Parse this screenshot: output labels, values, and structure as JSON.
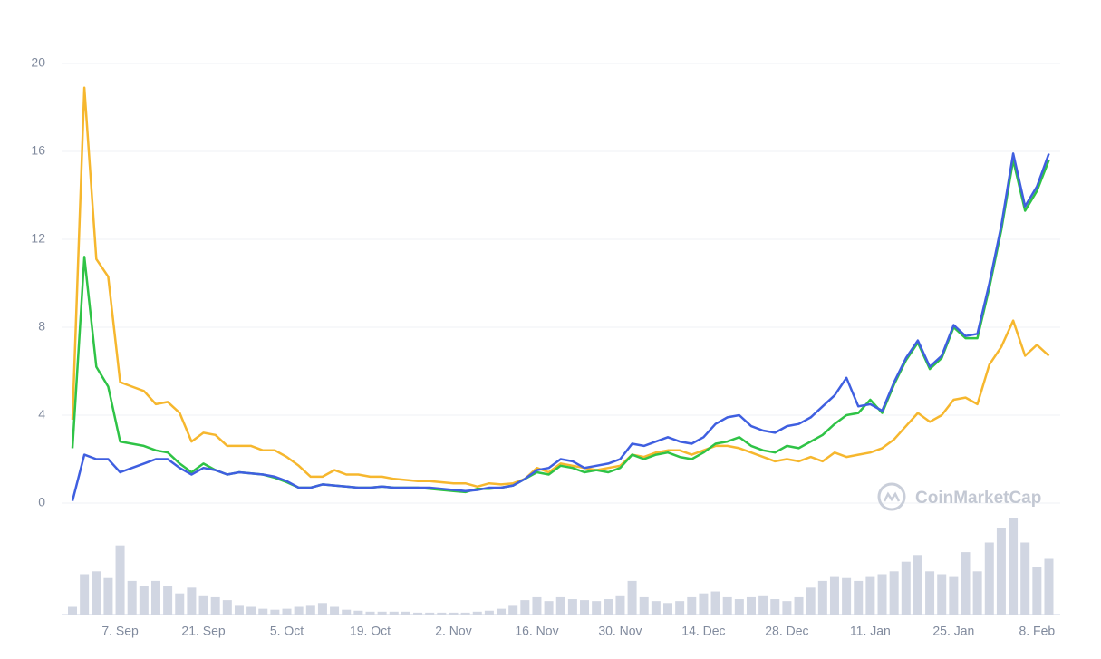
{
  "chart_data": {
    "type": "line",
    "watermark": "CoinMarketCap",
    "categories": [
      null,
      null,
      null,
      null,
      "7. Sep",
      null,
      null,
      null,
      null,
      null,
      null,
      "21. Sep",
      null,
      null,
      null,
      null,
      null,
      null,
      "5. Oct",
      null,
      null,
      null,
      null,
      null,
      null,
      "19. Oct",
      null,
      null,
      null,
      null,
      null,
      null,
      "2. Nov",
      null,
      null,
      null,
      null,
      null,
      null,
      "16. Nov",
      null,
      null,
      null,
      null,
      null,
      null,
      "30. Nov",
      null,
      null,
      null,
      null,
      null,
      null,
      "14. Dec",
      null,
      null,
      null,
      null,
      null,
      null,
      "28. Dec",
      null,
      null,
      null,
      null,
      null,
      null,
      "11. Jan",
      null,
      null,
      null,
      null,
      null,
      null,
      "25. Jan",
      null,
      null,
      null,
      null,
      null,
      null,
      "8. Feb",
      null
    ],
    "ylim": [
      0,
      20
    ],
    "yticks": [
      0,
      4,
      8,
      12,
      16,
      20
    ],
    "grid": true,
    "series": [
      {
        "color": "#f6b72e",
        "values": [
          3.8,
          18.9,
          11.1,
          10.3,
          5.5,
          5.3,
          5.1,
          4.5,
          4.6,
          4.1,
          2.8,
          3.2,
          3.1,
          2.6,
          2.6,
          2.6,
          2.4,
          2.4,
          2.1,
          1.7,
          1.2,
          1.2,
          1.5,
          1.3,
          1.3,
          1.2,
          1.2,
          1.1,
          1.05,
          1.0,
          1.0,
          0.95,
          0.9,
          0.9,
          0.75,
          0.9,
          0.85,
          0.9,
          1.1,
          1.6,
          1.4,
          1.8,
          1.7,
          1.6,
          1.5,
          1.6,
          1.7,
          2.2,
          2.1,
          2.3,
          2.4,
          2.4,
          2.2,
          2.4,
          2.6,
          2.6,
          2.5,
          2.3,
          2.1,
          1.9,
          2.0,
          1.9,
          2.1,
          1.9,
          2.3,
          2.1,
          2.2,
          2.3,
          2.5,
          2.9,
          3.5,
          4.1,
          3.7,
          4.0,
          4.7,
          4.8,
          4.5,
          6.3,
          7.1,
          8.3,
          6.7,
          7.2,
          6.7
        ]
      },
      {
        "color": "#2fc346",
        "values": [
          2.5,
          11.2,
          6.2,
          5.3,
          2.8,
          2.7,
          2.6,
          2.4,
          2.3,
          1.8,
          1.4,
          1.8,
          1.5,
          1.3,
          1.4,
          1.35,
          1.3,
          1.15,
          0.95,
          0.7,
          0.7,
          0.85,
          0.8,
          0.75,
          0.7,
          0.7,
          0.75,
          0.7,
          0.7,
          0.7,
          0.65,
          0.6,
          0.55,
          0.5,
          0.65,
          0.65,
          0.7,
          0.8,
          1.1,
          1.4,
          1.3,
          1.7,
          1.6,
          1.4,
          1.5,
          1.4,
          1.6,
          2.2,
          2.0,
          2.2,
          2.3,
          2.1,
          2.0,
          2.3,
          2.7,
          2.8,
          3.0,
          2.6,
          2.4,
          2.3,
          2.6,
          2.5,
          2.8,
          3.1,
          3.6,
          4.0,
          4.1,
          4.7,
          4.1,
          5.4,
          6.5,
          7.3,
          6.1,
          6.6,
          8.0,
          7.5,
          7.5,
          9.8,
          12.4,
          15.6,
          13.3,
          14.2,
          15.6
        ]
      },
      {
        "color": "#3f5fe0",
        "values": [
          0.1,
          2.2,
          2.0,
          2.0,
          1.4,
          1.6,
          1.8,
          2.0,
          2.0,
          1.6,
          1.3,
          1.6,
          1.5,
          1.3,
          1.4,
          1.35,
          1.3,
          1.2,
          1.0,
          0.7,
          0.7,
          0.85,
          0.8,
          0.75,
          0.7,
          0.7,
          0.75,
          0.7,
          0.7,
          0.7,
          0.7,
          0.65,
          0.6,
          0.55,
          0.6,
          0.7,
          0.7,
          0.8,
          1.1,
          1.5,
          1.6,
          2.0,
          1.9,
          1.6,
          1.7,
          1.8,
          2.0,
          2.7,
          2.6,
          2.8,
          3.0,
          2.8,
          2.7,
          3.0,
          3.6,
          3.9,
          4.0,
          3.5,
          3.3,
          3.2,
          3.5,
          3.6,
          3.9,
          4.4,
          4.9,
          5.7,
          4.4,
          4.5,
          4.2,
          5.5,
          6.6,
          7.4,
          6.2,
          6.7,
          8.1,
          7.6,
          7.7,
          10.0,
          12.6,
          15.9,
          13.5,
          14.4,
          15.9
        ]
      }
    ],
    "volume": {
      "color": "#d1d6e2",
      "values": [
        8,
        42,
        45,
        38,
        72,
        35,
        30,
        35,
        30,
        22,
        28,
        20,
        18,
        15,
        10,
        8,
        6,
        5,
        6,
        8,
        10,
        12,
        8,
        5,
        4,
        3,
        3,
        3,
        3,
        2,
        2,
        2,
        2,
        2,
        3,
        4,
        6,
        10,
        15,
        18,
        14,
        18,
        16,
        15,
        14,
        16,
        20,
        35,
        18,
        14,
        12,
        14,
        18,
        22,
        24,
        18,
        16,
        18,
        20,
        16,
        14,
        18,
        28,
        35,
        40,
        38,
        35,
        40,
        42,
        45,
        55,
        62,
        45,
        42,
        40,
        65,
        45,
        75,
        90,
        100,
        75,
        50,
        58
      ]
    }
  }
}
